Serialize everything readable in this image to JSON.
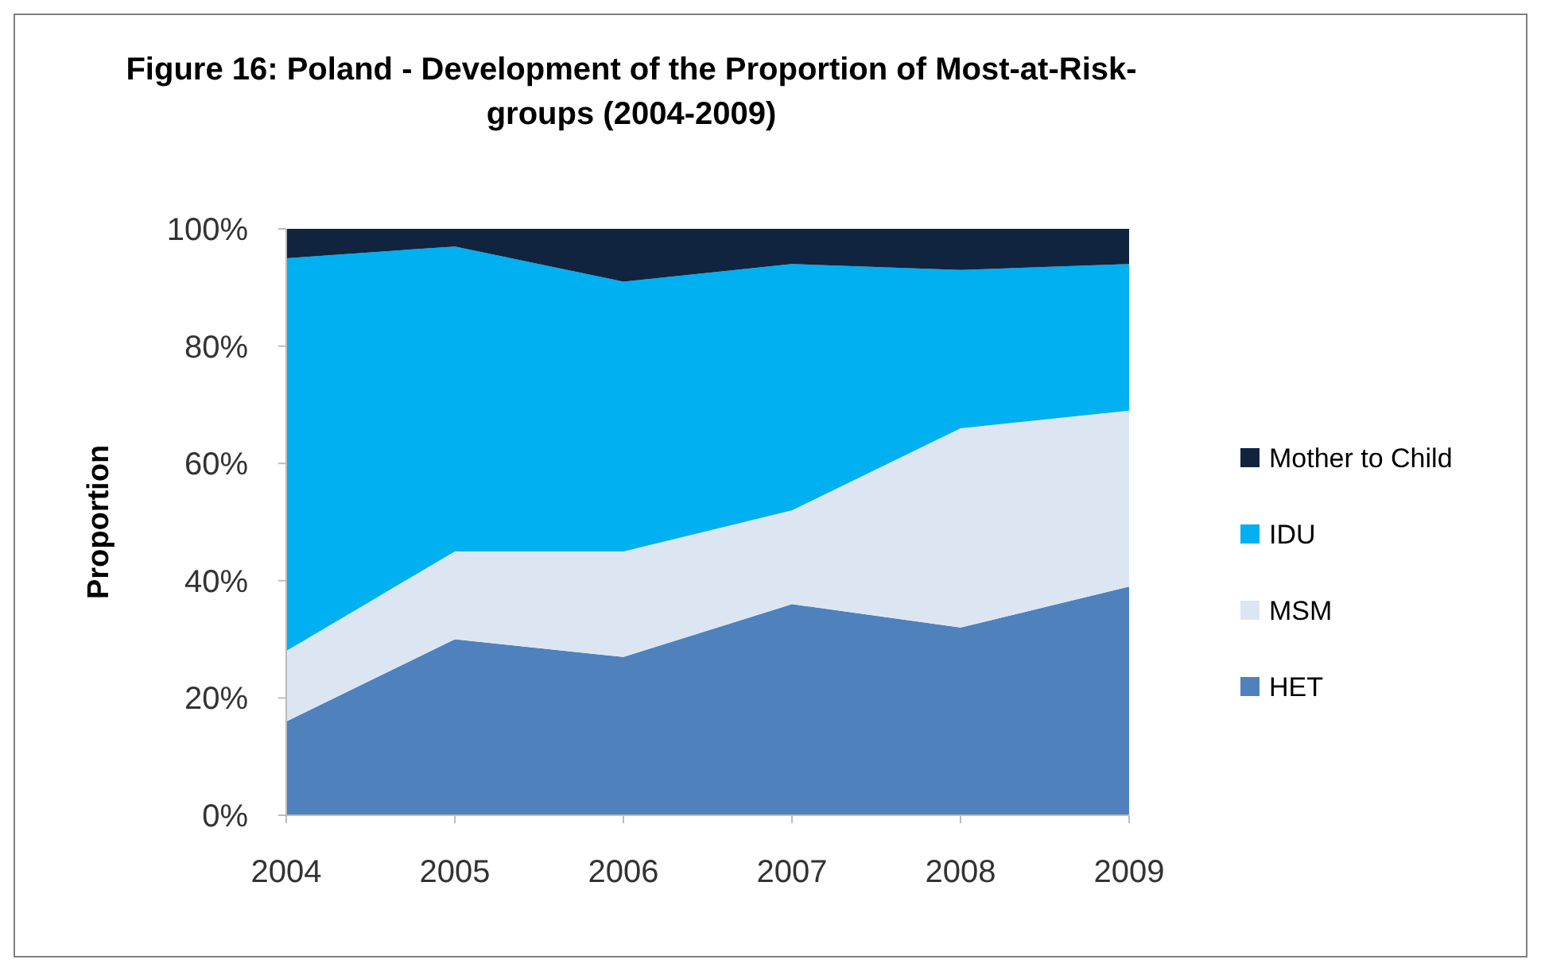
{
  "chart_data": {
    "type": "area",
    "stacked": true,
    "title": "Figure 16: Poland - Development of the Proportion of Most-at-Risk-groups (2004-2009)",
    "ylabel": "Proportion",
    "categories": [
      "2004",
      "2005",
      "2006",
      "2007",
      "2008",
      "2009"
    ],
    "series": [
      {
        "name": "HET",
        "color": "#4f81bd",
        "values": [
          16,
          30,
          27,
          36,
          32,
          39
        ]
      },
      {
        "name": "MSM",
        "color": "#dce6f2",
        "values": [
          12,
          15,
          18,
          16,
          34,
          30
        ]
      },
      {
        "name": "IDU",
        "color": "#00b0f0",
        "values": [
          67,
          52,
          46,
          42,
          27,
          25
        ]
      },
      {
        "name": "Mother to Child",
        "color": "#10243f",
        "values": [
          5,
          3,
          9,
          6,
          7,
          6
        ]
      }
    ],
    "ylim": [
      0,
      100
    ],
    "yticks": [
      {
        "value": 0,
        "label": "0%"
      },
      {
        "value": 20,
        "label": "20%"
      },
      {
        "value": 40,
        "label": "40%"
      },
      {
        "value": 60,
        "label": "60%"
      },
      {
        "value": 80,
        "label": "80%"
      },
      {
        "value": 100,
        "label": "100%"
      }
    ],
    "grid": false,
    "legend": "right"
  }
}
